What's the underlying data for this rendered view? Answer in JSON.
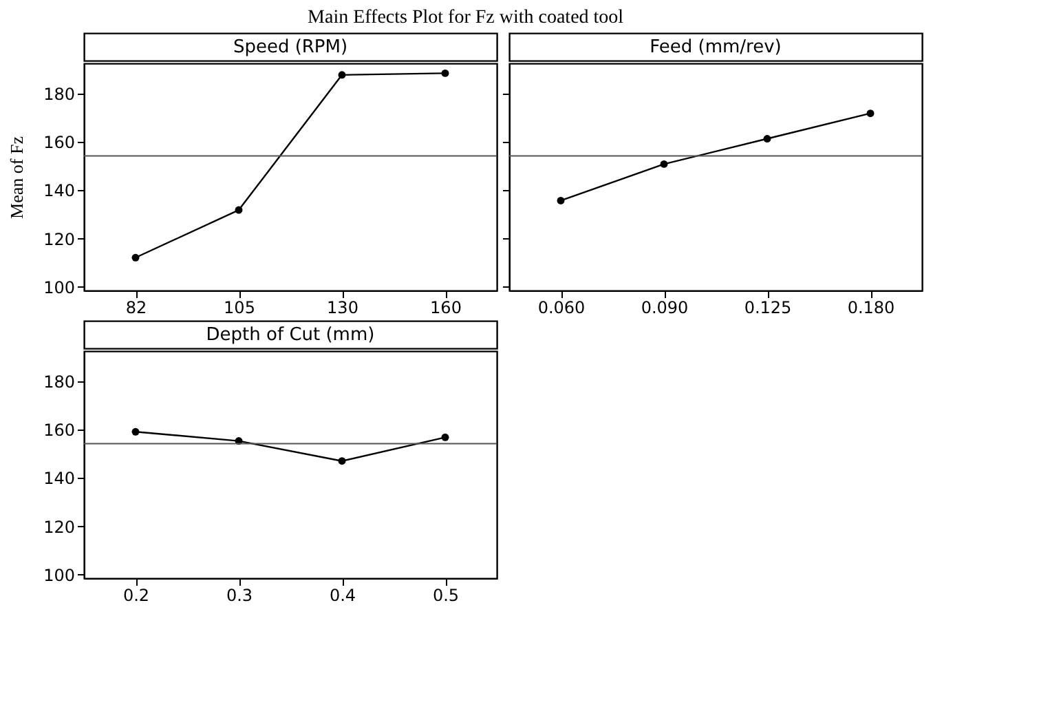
{
  "chart_data": [
    {
      "type": "line",
      "title": "Main Effects Plot for Fz with coated tool",
      "subtitle": "Speed (RPM)",
      "ylabel": "Mean of Fz",
      "categories": [
        "82",
        "105",
        "130",
        "160"
      ],
      "series": [
        {
          "color": "#000000",
          "values": [
            112.1,
            131.8,
            187.7,
            188.4
          ]
        }
      ],
      "ylim": [
        98.5,
        192.5
      ],
      "yticks": [
        100,
        120,
        140,
        160,
        180
      ],
      "grid": false,
      "marker": "circle",
      "line_style": "solid",
      "ref_lines": [
        {
          "axis": "y",
          "value": 154.2,
          "color": "#555555"
        }
      ]
    },
    {
      "type": "line",
      "subtitle": "Feed (mm/rev)",
      "categories": [
        "0.060",
        "0.090",
        "0.125",
        "0.180"
      ],
      "series": [
        {
          "color": "#000000",
          "values": [
            135.7,
            150.8,
            161.3,
            171.8
          ]
        }
      ],
      "ylim": [
        98.5,
        192.5
      ],
      "yticks": [
        100,
        120,
        140,
        160,
        180
      ],
      "tick_labels": "x",
      "grid": false,
      "marker": "circle",
      "line_style": "solid",
      "ref_lines": [
        {
          "axis": "y",
          "value": 154.2,
          "color": "#555555"
        }
      ]
    },
    {
      "type": "line",
      "subtitle": "Depth of Cut (mm)",
      "categories": [
        "0.2",
        "0.3",
        "0.4",
        "0.5"
      ],
      "series": [
        {
          "color": "#000000",
          "values": [
            159.1,
            155.3,
            147.0,
            156.8
          ]
        }
      ],
      "ylim": [
        98.5,
        192.5
      ],
      "yticks": [
        100,
        120,
        140,
        160,
        180
      ],
      "grid": false,
      "marker": "circle",
      "line_style": "solid",
      "ref_lines": [
        {
          "axis": "y",
          "value": 154.2,
          "color": "#555555"
        }
      ]
    }
  ]
}
